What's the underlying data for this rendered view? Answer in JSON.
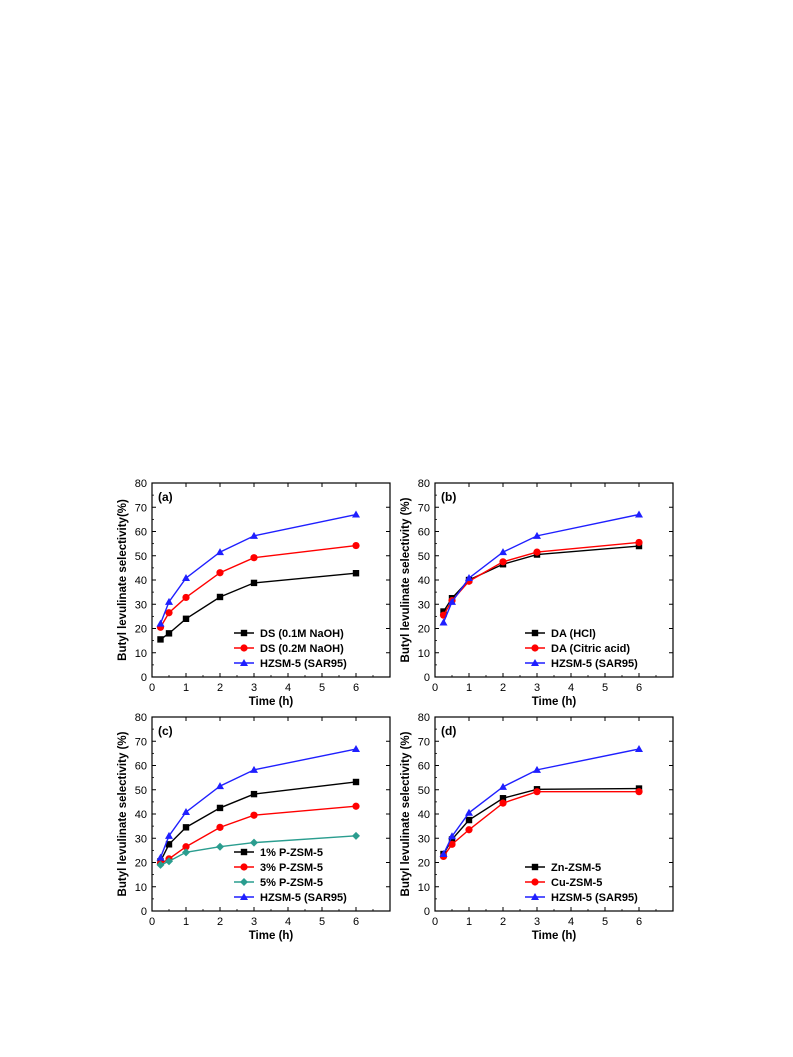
{
  "chart_data": [
    {
      "type": "line",
      "panel_label": "(a)",
      "xlabel": "Time (h)",
      "ylabel": "Butyl levulinate selectivity(%)",
      "xlim": [
        0,
        7
      ],
      "ylim": [
        0,
        80
      ],
      "x_ticks": [
        0,
        1,
        2,
        3,
        4,
        5,
        6
      ],
      "y_ticks": [
        0,
        10,
        20,
        30,
        40,
        50,
        60,
        70,
        80
      ],
      "legend_position": "lower-right",
      "grid": false,
      "x": [
        0.25,
        0.5,
        1,
        2,
        3,
        6
      ],
      "series": [
        {
          "name": "DS (0.1M NaOH)",
          "color": "#000000",
          "marker": "square",
          "values": [
            15.5,
            18,
            24,
            33,
            38.8,
            42.8
          ]
        },
        {
          "name": "DS (0.2M NaOH)",
          "color": "#ff0000",
          "marker": "circle",
          "values": [
            20.5,
            26.5,
            32.8,
            43,
            49.2,
            54.2
          ]
        },
        {
          "name": "HZSM-5 (SAR95)",
          "color": "#1f1fff",
          "marker": "triangle",
          "values": [
            22,
            31,
            40.8,
            51.5,
            58.2,
            67
          ]
        }
      ]
    },
    {
      "type": "line",
      "panel_label": "(b)",
      "xlabel": "Time (h)",
      "ylabel": "Butyl levulinate selectivity (%)",
      "xlim": [
        0,
        7
      ],
      "ylim": [
        0,
        80
      ],
      "x_ticks": [
        0,
        1,
        2,
        3,
        4,
        5,
        6
      ],
      "y_ticks": [
        0,
        10,
        20,
        30,
        40,
        50,
        60,
        70,
        80
      ],
      "legend_position": "lower-right",
      "grid": false,
      "x": [
        0.25,
        0.5,
        1,
        2,
        3,
        6
      ],
      "series": [
        {
          "name": "DA (HCl)",
          "color": "#000000",
          "marker": "square",
          "values": [
            27,
            32.5,
            40,
            46.5,
            50.5,
            54
          ]
        },
        {
          "name": "DA (Citric acid)",
          "color": "#ff0000",
          "marker": "circle",
          "values": [
            25.5,
            31.5,
            39.5,
            47.5,
            51.5,
            55.5
          ]
        },
        {
          "name": "HZSM-5 (SAR95)",
          "color": "#1f1fff",
          "marker": "triangle",
          "values": [
            22.5,
            31,
            40.8,
            51.5,
            58.2,
            67
          ]
        }
      ]
    },
    {
      "type": "line",
      "panel_label": "(c)",
      "xlabel": "Time (h)",
      "ylabel": "Butyl levulinate selectivity (%)",
      "xlim": [
        0,
        7
      ],
      "ylim": [
        0,
        80
      ],
      "x_ticks": [
        0,
        1,
        2,
        3,
        4,
        5,
        6
      ],
      "y_ticks": [
        0,
        10,
        20,
        30,
        40,
        50,
        60,
        70,
        80
      ],
      "legend_position": "lower-right",
      "grid": false,
      "x": [
        0.25,
        0.5,
        1,
        2,
        3,
        6
      ],
      "series": [
        {
          "name": "1% P-ZSM-5",
          "color": "#000000",
          "marker": "square",
          "values": [
            20.5,
            27.5,
            34.5,
            42.5,
            48.2,
            53.2
          ]
        },
        {
          "name": "3% P-ZSM-5",
          "color": "#ff0000",
          "marker": "circle",
          "values": [
            19.5,
            21.5,
            26.5,
            34.5,
            39.5,
            43.2
          ]
        },
        {
          "name": "5% P-ZSM-5",
          "color": "#2a9d8f",
          "marker": "diamond",
          "values": [
            19,
            20.5,
            24.2,
            26.5,
            28.2,
            31
          ]
        },
        {
          "name": "HZSM-5 (SAR95)",
          "color": "#1f1fff",
          "marker": "triangle",
          "values": [
            22,
            31,
            40.8,
            51.5,
            58.2,
            66.8
          ]
        }
      ]
    },
    {
      "type": "line",
      "panel_label": "(d)",
      "xlabel": "Time (h)",
      "ylabel": "Butyl levulinate selectivity (%)",
      "xlim": [
        0,
        7
      ],
      "ylim": [
        0,
        80
      ],
      "x_ticks": [
        0,
        1,
        2,
        3,
        4,
        5,
        6
      ],
      "y_ticks": [
        0,
        10,
        20,
        30,
        40,
        50,
        60,
        70,
        80
      ],
      "legend_position": "lower-right",
      "grid": false,
      "x": [
        0.25,
        0.5,
        1,
        2,
        3,
        6
      ],
      "series": [
        {
          "name": "Zn-ZSM-5",
          "color": "#000000",
          "marker": "square",
          "values": [
            23.5,
            29.5,
            37.5,
            46.5,
            50.2,
            50.5
          ]
        },
        {
          "name": "Cu-ZSM-5",
          "color": "#ff0000",
          "marker": "circle",
          "values": [
            22.5,
            27.5,
            33.5,
            44.5,
            49.2,
            49.2
          ]
        },
        {
          "name": "HZSM-5 (SAR95)",
          "color": "#1f1fff",
          "marker": "triangle",
          "values": [
            23.5,
            30.8,
            40.5,
            51.2,
            58.2,
            66.8
          ]
        }
      ]
    }
  ]
}
